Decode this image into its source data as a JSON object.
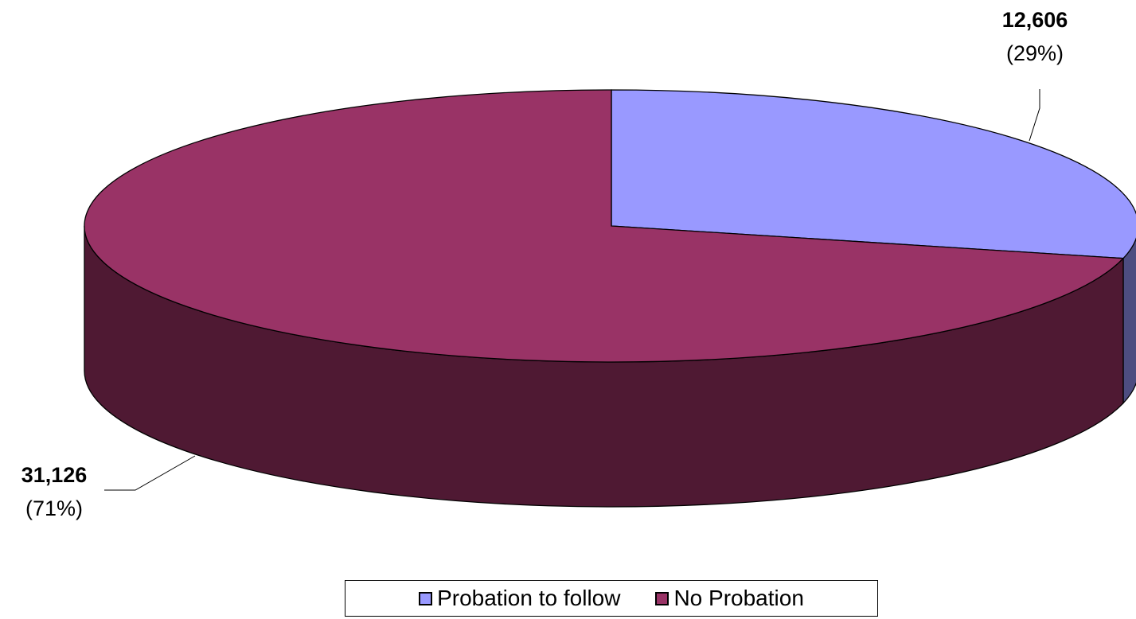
{
  "chart_data": {
    "type": "pie",
    "style": "3d",
    "title": "",
    "legend_position": "bottom",
    "slices": [
      {
        "name": "Probation to follow",
        "value": 12606,
        "value_label": "12,606",
        "percent_label": "(29%)",
        "color": "#9999ff",
        "side_color": "#4d4d80"
      },
      {
        "name": "No Probation",
        "value": 31126,
        "value_label": "31,126",
        "percent_label": "(71%)",
        "color": "#993366",
        "side_color": "#4f1933"
      }
    ]
  }
}
